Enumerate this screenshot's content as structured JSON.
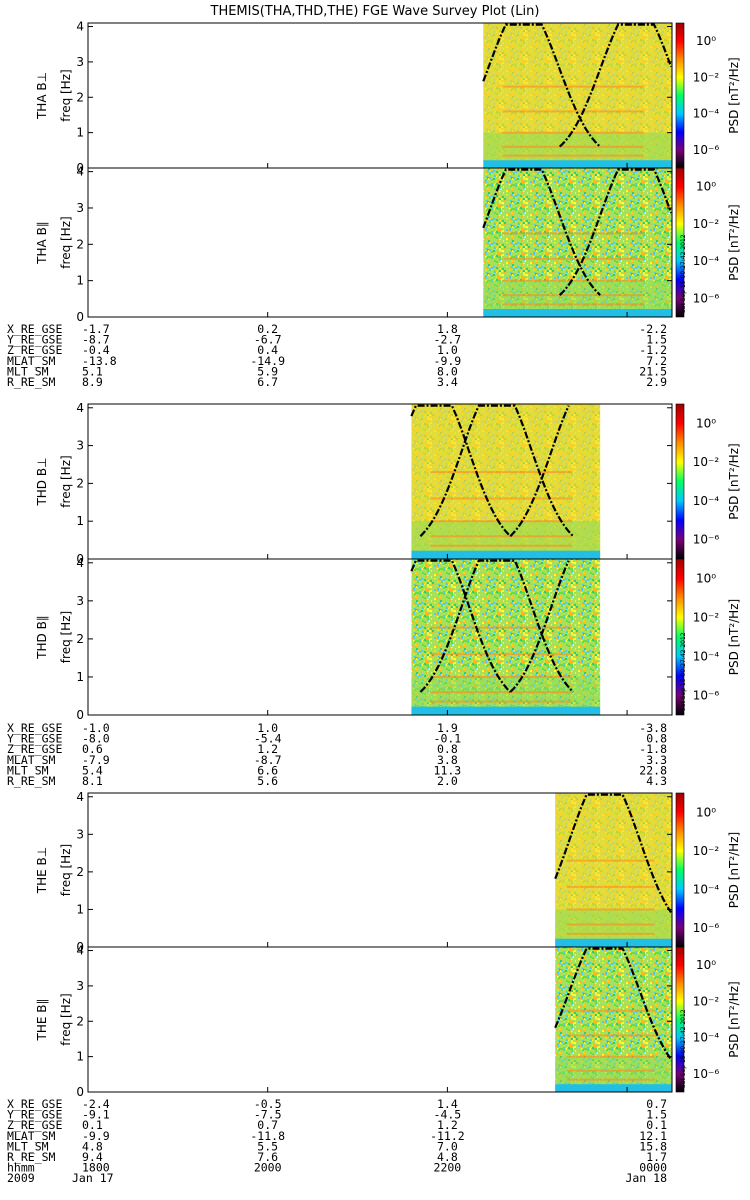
{
  "title": "THEMIS(THA,THD,THE) FGE Wave Survey Plot (Lin)",
  "colors": {
    "noise_floor": "#21bfe6",
    "background": "#ffffff",
    "frame": "#000000",
    "curve": "#000000"
  },
  "colorbar": {
    "label": "PSD [nT²/Hz]",
    "ticks": [
      "10⁰",
      "10⁻²",
      "10⁻⁴",
      "10⁻⁶"
    ],
    "tick_exponents": [
      0,
      -2,
      -4,
      -6
    ],
    "range_exponent": [
      -7,
      1
    ],
    "colormap": [
      "#000000",
      "#7a007a",
      "#0000ff",
      "#00c8ff",
      "#00ff64",
      "#ffff00",
      "#ff8c00",
      "#ff0000",
      "#a00000"
    ],
    "stamp": "Sat Sep 15 00:27:42 2012"
  },
  "chart_data": {
    "type": "heatmap",
    "x_axis": {
      "name": "hhmm",
      "ticks": [
        "1800",
        "2000",
        "2200",
        "0000"
      ],
      "date_labels": [
        "Jan 17",
        "Jan 18"
      ],
      "year": "2009",
      "range_hours": [
        18.0,
        24.5
      ]
    },
    "y_axis": {
      "label": "freq [Hz]",
      "ticks": [
        0,
        1,
        2,
        3,
        4
      ],
      "range": [
        0,
        4.1
      ]
    },
    "groups": [
      {
        "probe": "THA",
        "panels": [
          {
            "label": "THA B⊥",
            "data_start_hour": 22.4,
            "data_end_hour": 24.5,
            "curve_peaks_hour": [
              22.85,
              24.1
            ]
          },
          {
            "label": "THA B∥",
            "data_start_hour": 22.4,
            "data_end_hour": 24.5,
            "curve_peaks_hour": [
              22.85,
              24.1
            ]
          }
        ],
        "ephemeris": [
          {
            "name": "X_RE_GSE",
            "values": [
              "-1.7",
              "0.2",
              "1.8",
              "-2.2"
            ]
          },
          {
            "name": "Y_RE_GSE",
            "values": [
              "-8.7",
              "-6.7",
              "-2.7",
              "1.5"
            ]
          },
          {
            "name": "Z_RE_GSE",
            "values": [
              "-0.4",
              "0.4",
              "1.0",
              "-1.2"
            ]
          },
          {
            "name": "MLAT_SM",
            "values": [
              "-13.8",
              "-14.9",
              "-9.9",
              "7.2"
            ]
          },
          {
            "name": "MLT_SM",
            "values": [
              "5.1",
              "5.9",
              "8.0",
              "21.5"
            ]
          },
          {
            "name": "R_RE_SM",
            "values": [
              "8.9",
              "6.7",
              "3.4",
              "2.9"
            ]
          }
        ]
      },
      {
        "probe": "THD",
        "panels": [
          {
            "label": "THD B⊥",
            "data_start_hour": 21.6,
            "data_end_hour": 23.7,
            "curve_peaks_hour": [
              21.85,
              22.55,
              23.55
            ]
          },
          {
            "label": "THD B∥",
            "data_start_hour": 21.6,
            "data_end_hour": 23.7,
            "curve_peaks_hour": [
              21.85,
              22.55,
              23.55
            ]
          }
        ],
        "ephemeris": [
          {
            "name": "X_RE_GSE",
            "values": [
              "-1.0",
              "1.0",
              "1.9",
              "-3.8"
            ]
          },
          {
            "name": "Y_RE_GSE",
            "values": [
              "-8.0",
              "-5.4",
              "-0.1",
              "0.8"
            ]
          },
          {
            "name": "Z_RE_GSE",
            "values": [
              "0.6",
              "1.2",
              "0.8",
              "-1.8"
            ]
          },
          {
            "name": "MLAT_SM",
            "values": [
              "-7.9",
              "-8.7",
              "3.8",
              "3.3"
            ]
          },
          {
            "name": "MLT_SM",
            "values": [
              "5.4",
              "6.6",
              "11.3",
              "22.8"
            ]
          },
          {
            "name": "R_RE_SM",
            "values": [
              "8.1",
              "5.6",
              "2.0",
              "4.3"
            ]
          }
        ]
      },
      {
        "probe": "THE",
        "panels": [
          {
            "label": "THE B⊥",
            "data_start_hour": 23.2,
            "data_end_hour": 24.5,
            "curve_peaks_hour": [
              23.75
            ]
          },
          {
            "label": "THE B∥",
            "data_start_hour": 23.2,
            "data_end_hour": 24.5,
            "curve_peaks_hour": [
              23.75
            ]
          }
        ],
        "ephemeris": [
          {
            "name": "X_RE_GSE",
            "values": [
              "-2.4",
              "-0.5",
              "1.4",
              "0.7"
            ]
          },
          {
            "name": "Y_RE_GSE",
            "values": [
              "-9.1",
              "-7.5",
              "-4.5",
              "1.5"
            ]
          },
          {
            "name": "Z_RE_GSE",
            "values": [
              "0.1",
              "0.7",
              "1.2",
              "0.1"
            ]
          },
          {
            "name": "MLAT_SM",
            "values": [
              "-9.9",
              "-11.8",
              "-11.2",
              "12.1"
            ]
          },
          {
            "name": "MLT_SM",
            "values": [
              "4.8",
              "5.5",
              "7.0",
              "15.8"
            ]
          },
          {
            "name": "R_RE_SM",
            "values": [
              "9.4",
              "7.6",
              "4.8",
              "1.7"
            ]
          }
        ]
      }
    ]
  }
}
